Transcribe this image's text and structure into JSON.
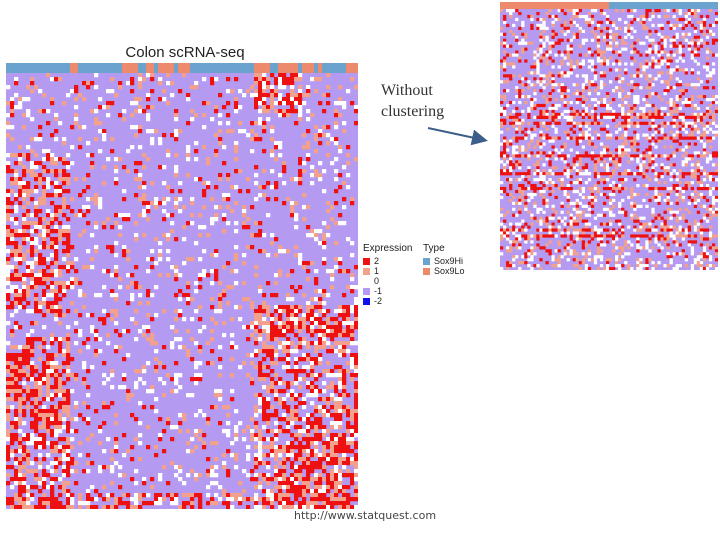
{
  "title": "Colon scRNA-seq",
  "annotation": {
    "line1": "Without",
    "line2": "clustering"
  },
  "footer": "http://www.statquest.com",
  "legend": {
    "expression_title": "Expression",
    "expression_levels": [
      {
        "label": "2",
        "color": "#ee1111"
      },
      {
        "label": "1",
        "color": "#f3a08c"
      },
      {
        "label": "0",
        "color": "#ffffff"
      },
      {
        "label": "-1",
        "color": "#b59af2"
      },
      {
        "label": "-2",
        "color": "#1010ee"
      }
    ],
    "type_title": "Type",
    "types": [
      {
        "label": "Sox9Hi",
        "color": "#6ba3cf"
      },
      {
        "label": "Sox9Lo",
        "color": "#ec8a6b"
      }
    ]
  },
  "colors": {
    "high": "#ee1111",
    "mid_high": "#f3a08c",
    "zero": "#ffffff",
    "low": "#b59af2",
    "very_low": "#1010ee",
    "sox9hi": "#6ba3cf",
    "sox9lo": "#ec8a6b"
  }
}
